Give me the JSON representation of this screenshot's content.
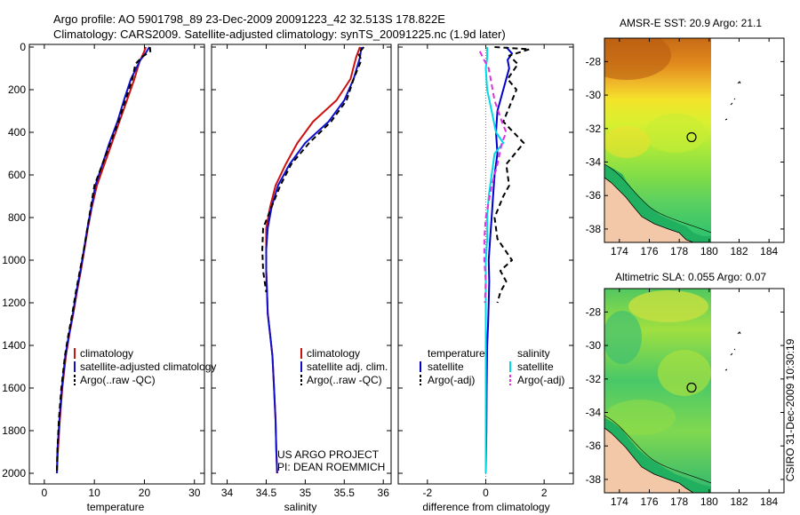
{
  "header": {
    "line1": "Argo profile: AO 5901798_89 23-Dec-2009 20091223_42 32.513S 178.822E",
    "line2": "Climatology: CARS2009. Satellite-adjusted climatology: synTS_20091225.nc (1.9d later)"
  },
  "side_text": {
    "project": "US ARGO PROJECT",
    "pi": "PI: DEAN ROEMMICH",
    "stamp": "CSIRO 31-Dec-2009 10:30:19"
  },
  "colors": {
    "climatology": "#cc1111",
    "satellite": "#1010cc",
    "argo": "#000000",
    "temp_diff_satellite": "#0000cc",
    "sal_diff_satellite": "#00d8e8",
    "sal_diff_argo": "#e030e0"
  },
  "chart_data": [
    {
      "type": "line",
      "name": "temperature-panel",
      "xlabel": "temperature",
      "ylabel": "",
      "xlim": [
        -3,
        32
      ],
      "ylim": [
        2050,
        0
      ],
      "y_reversed": true,
      "xticks": [
        0,
        10,
        20,
        30
      ],
      "yticks": [
        0,
        200,
        400,
        600,
        800,
        1000,
        1200,
        1400,
        1600,
        1800,
        2000
      ],
      "legend": {
        "placement": "lower-right",
        "entries": [
          "climatology",
          "satellite-adjusted climatology",
          "Argo(..raw -QC)"
        ]
      },
      "series": [
        {
          "name": "climatology",
          "style": "solid",
          "color_key": "climatology",
          "points": [
            [
              20.3,
              0
            ],
            [
              19.8,
              30
            ],
            [
              19.0,
              70
            ],
            [
              18.0,
              150
            ],
            [
              16.5,
              250
            ],
            [
              15.0,
              350
            ],
            [
              13.5,
              450
            ],
            [
              12.0,
              550
            ],
            [
              10.5,
              650
            ],
            [
              9.5,
              750
            ],
            [
              8.7,
              850
            ],
            [
              8.0,
              950
            ],
            [
              7.3,
              1050
            ],
            [
              6.5,
              1150
            ],
            [
              5.8,
              1250
            ],
            [
              5.0,
              1350
            ],
            [
              4.3,
              1450
            ],
            [
              3.6,
              1600
            ],
            [
              3.1,
              1750
            ],
            [
              2.7,
              1900
            ],
            [
              2.5,
              2000
            ]
          ]
        },
        {
          "name": "satellite-adjusted climatology",
          "style": "solid",
          "color_key": "satellite",
          "points": [
            [
              21.0,
              0
            ],
            [
              20.2,
              30
            ],
            [
              19.2,
              60
            ],
            [
              17.3,
              150
            ],
            [
              15.9,
              250
            ],
            [
              14.6,
              350
            ],
            [
              13.0,
              450
            ],
            [
              11.6,
              550
            ],
            [
              10.2,
              650
            ],
            [
              9.4,
              750
            ],
            [
              8.6,
              850
            ],
            [
              7.9,
              950
            ],
            [
              7.2,
              1050
            ],
            [
              6.4,
              1150
            ],
            [
              5.7,
              1250
            ],
            [
              4.9,
              1350
            ],
            [
              4.2,
              1450
            ],
            [
              3.5,
              1600
            ],
            [
              3.0,
              1750
            ],
            [
              2.6,
              1900
            ],
            [
              2.5,
              2000
            ]
          ]
        },
        {
          "name": "Argo(..raw -QC)",
          "style": "dashed",
          "color_key": "argo",
          "points": [
            [
              21.1,
              0
            ],
            [
              21.2,
              20
            ],
            [
              19.6,
              45
            ],
            [
              18.2,
              80
            ],
            [
              17.6,
              150
            ],
            [
              16.2,
              250
            ],
            [
              14.8,
              350
            ],
            [
              13.2,
              450
            ],
            [
              11.6,
              550
            ],
            [
              10.0,
              650
            ],
            [
              9.3,
              750
            ],
            [
              8.6,
              850
            ],
            [
              7.9,
              950
            ],
            [
              7.1,
              1050
            ],
            [
              6.3,
              1150
            ],
            [
              5.6,
              1250
            ],
            [
              4.8,
              1350
            ],
            [
              4.1,
              1450
            ],
            [
              3.4,
              1600
            ],
            [
              2.9,
              1750
            ],
            [
              2.6,
              1900
            ],
            [
              2.5,
              2000
            ]
          ]
        }
      ]
    },
    {
      "type": "line",
      "name": "salinity-panel",
      "xlabel": "salinity",
      "ylabel": "",
      "xlim": [
        33.8,
        36.1
      ],
      "ylim": [
        2050,
        0
      ],
      "y_reversed": true,
      "xticks": [
        34,
        34.5,
        35,
        35.5,
        36
      ],
      "legend": {
        "placement": "lower-right",
        "entries": [
          "climatology",
          "satellite adj. clim.",
          "Argo(..raw -QC)"
        ]
      },
      "series": [
        {
          "name": "climatology",
          "style": "solid",
          "color_key": "climatology",
          "points": [
            [
              35.7,
              0
            ],
            [
              35.65,
              50
            ],
            [
              35.58,
              150
            ],
            [
              35.4,
              250
            ],
            [
              35.1,
              350
            ],
            [
              34.9,
              450
            ],
            [
              34.75,
              550
            ],
            [
              34.62,
              650
            ],
            [
              34.55,
              750
            ],
            [
              34.5,
              850
            ],
            [
              34.5,
              950
            ],
            [
              34.5,
              1050
            ],
            [
              34.51,
              1150
            ],
            [
              34.52,
              1250
            ],
            [
              34.55,
              1350
            ],
            [
              34.58,
              1450
            ],
            [
              34.6,
              1600
            ],
            [
              34.62,
              1750
            ],
            [
              34.63,
              1900
            ],
            [
              34.64,
              2000
            ]
          ]
        },
        {
          "name": "satellite adj. clim.",
          "style": "solid",
          "color_key": "satellite",
          "points": [
            [
              35.72,
              0
            ],
            [
              35.7,
              50
            ],
            [
              35.62,
              150
            ],
            [
              35.5,
              250
            ],
            [
              35.3,
              350
            ],
            [
              35.0,
              450
            ],
            [
              34.8,
              550
            ],
            [
              34.65,
              650
            ],
            [
              34.57,
              750
            ],
            [
              34.52,
              850
            ],
            [
              34.5,
              950
            ],
            [
              34.5,
              1050
            ],
            [
              34.51,
              1150
            ],
            [
              34.52,
              1250
            ],
            [
              34.55,
              1350
            ],
            [
              34.58,
              1450
            ],
            [
              34.6,
              1600
            ],
            [
              34.62,
              1750
            ],
            [
              34.63,
              1900
            ],
            [
              34.64,
              2000
            ]
          ]
        },
        {
          "name": "Argo(..raw -QC)",
          "style": "dashed",
          "color_key": "argo",
          "points": [
            [
              35.75,
              0
            ],
            [
              35.68,
              30
            ],
            [
              35.72,
              60
            ],
            [
              35.62,
              150
            ],
            [
              35.53,
              250
            ],
            [
              35.33,
              350
            ],
            [
              35.05,
              450
            ],
            [
              34.82,
              550
            ],
            [
              34.68,
              650
            ],
            [
              34.57,
              750
            ],
            [
              34.46,
              850
            ],
            [
              34.45,
              950
            ],
            [
              34.46,
              1050
            ],
            [
              34.5,
              1150
            ]
          ]
        }
      ]
    },
    {
      "type": "line",
      "name": "difference-panel",
      "xlabel": "difference from climatology",
      "ylabel": "",
      "xlim": [
        -3,
        3
      ],
      "ylim": [
        2050,
        0
      ],
      "y_reversed": true,
      "xticks": [
        -2,
        0,
        2
      ],
      "legend": {
        "placement": "lower-right",
        "entries": [
          "temperature",
          "satellite",
          "Argo(-adj)",
          "salinity",
          "satellite",
          "Argo(-adj)"
        ]
      },
      "series": [
        {
          "name": "temperature satellite",
          "style": "solid",
          "color_key": "temp_diff_satellite",
          "points": [
            [
              0.7,
              0
            ],
            [
              0.9,
              30
            ],
            [
              0.75,
              60
            ],
            [
              0.8,
              100
            ],
            [
              0.6,
              200
            ],
            [
              0.4,
              300
            ],
            [
              0.35,
              400
            ],
            [
              0.4,
              500
            ],
            [
              0.3,
              600
            ],
            [
              0.25,
              700
            ],
            [
              0.2,
              800
            ],
            [
              0.15,
              900
            ],
            [
              0.1,
              1000
            ],
            [
              0.12,
              1100
            ],
            [
              0.1,
              1200
            ],
            [
              0.08,
              1300
            ],
            [
              0.05,
              1400
            ],
            [
              0.03,
              1600
            ],
            [
              0.02,
              1800
            ],
            [
              0.0,
              2000
            ]
          ]
        },
        {
          "name": "temperature Argo(-adj)",
          "style": "dashed",
          "color_key": "argo",
          "points": [
            [
              0.3,
              0
            ],
            [
              1.5,
              10
            ],
            [
              0.8,
              40
            ],
            [
              1.1,
              80
            ],
            [
              0.75,
              150
            ],
            [
              1.05,
              200
            ],
            [
              0.6,
              350
            ],
            [
              1.3,
              450
            ],
            [
              0.7,
              550
            ],
            [
              0.8,
              650
            ],
            [
              0.6,
              700
            ],
            [
              0.3,
              800
            ],
            [
              0.4,
              900
            ],
            [
              0.9,
              1000
            ],
            [
              0.5,
              1050
            ],
            [
              0.7,
              1100
            ],
            [
              0.5,
              1150
            ],
            [
              0.4,
              1200
            ]
          ]
        },
        {
          "name": "salinity satellite",
          "style": "solid",
          "color_key": "sal_diff_satellite",
          "points": [
            [
              0.05,
              0
            ],
            [
              0.05,
              50
            ],
            [
              0.0,
              100
            ],
            [
              0.05,
              200
            ],
            [
              0.2,
              300
            ],
            [
              0.35,
              400
            ],
            [
              0.6,
              450
            ],
            [
              0.3,
              500
            ],
            [
              0.2,
              600
            ],
            [
              0.1,
              700
            ],
            [
              0.05,
              800
            ],
            [
              0.05,
              900
            ],
            [
              0.0,
              1000
            ],
            [
              0.0,
              1200
            ],
            [
              0.0,
              1400
            ],
            [
              0.0,
              1600
            ],
            [
              0.0,
              1800
            ],
            [
              0.0,
              2000
            ]
          ]
        },
        {
          "name": "salinity Argo(-adj)",
          "style": "dashed",
          "color_key": "sal_diff_argo",
          "points": [
            [
              -0.2,
              20
            ],
            [
              -0.1,
              50
            ],
            [
              0.1,
              100
            ],
            [
              0.3,
              250
            ],
            [
              0.55,
              350
            ],
            [
              0.7,
              400
            ],
            [
              0.55,
              450
            ],
            [
              0.4,
              550
            ],
            [
              0.2,
              650
            ],
            [
              0.0,
              800
            ],
            [
              -0.05,
              900
            ],
            [
              -0.05,
              1000
            ],
            [
              0.0,
              1100
            ],
            [
              -0.03,
              1200
            ]
          ]
        }
      ]
    }
  ],
  "maps": [
    {
      "name": "sst-map",
      "title": "AMSR-E SST: 20.9 Argo: 21.1",
      "xticks": [
        174,
        176,
        178,
        180,
        182,
        184
      ],
      "yticks": [
        -28,
        -30,
        -32,
        -34,
        -36,
        -38
      ],
      "xlim": [
        173,
        185
      ],
      "ylim": [
        -38.8,
        -26.6
      ],
      "marker": {
        "lon": 178.822,
        "lat": -32.513
      }
    },
    {
      "name": "sla-map",
      "title": "Altimetric SLA: 0.055 Argo: 0.07",
      "xticks": [
        174,
        176,
        178,
        180,
        182,
        184
      ],
      "yticks": [
        -28,
        -30,
        -32,
        -34,
        -36,
        -38
      ],
      "xlim": [
        173,
        185
      ],
      "ylim": [
        -38.8,
        -26.6
      ],
      "marker": {
        "lon": 178.822,
        "lat": -32.513
      }
    }
  ]
}
